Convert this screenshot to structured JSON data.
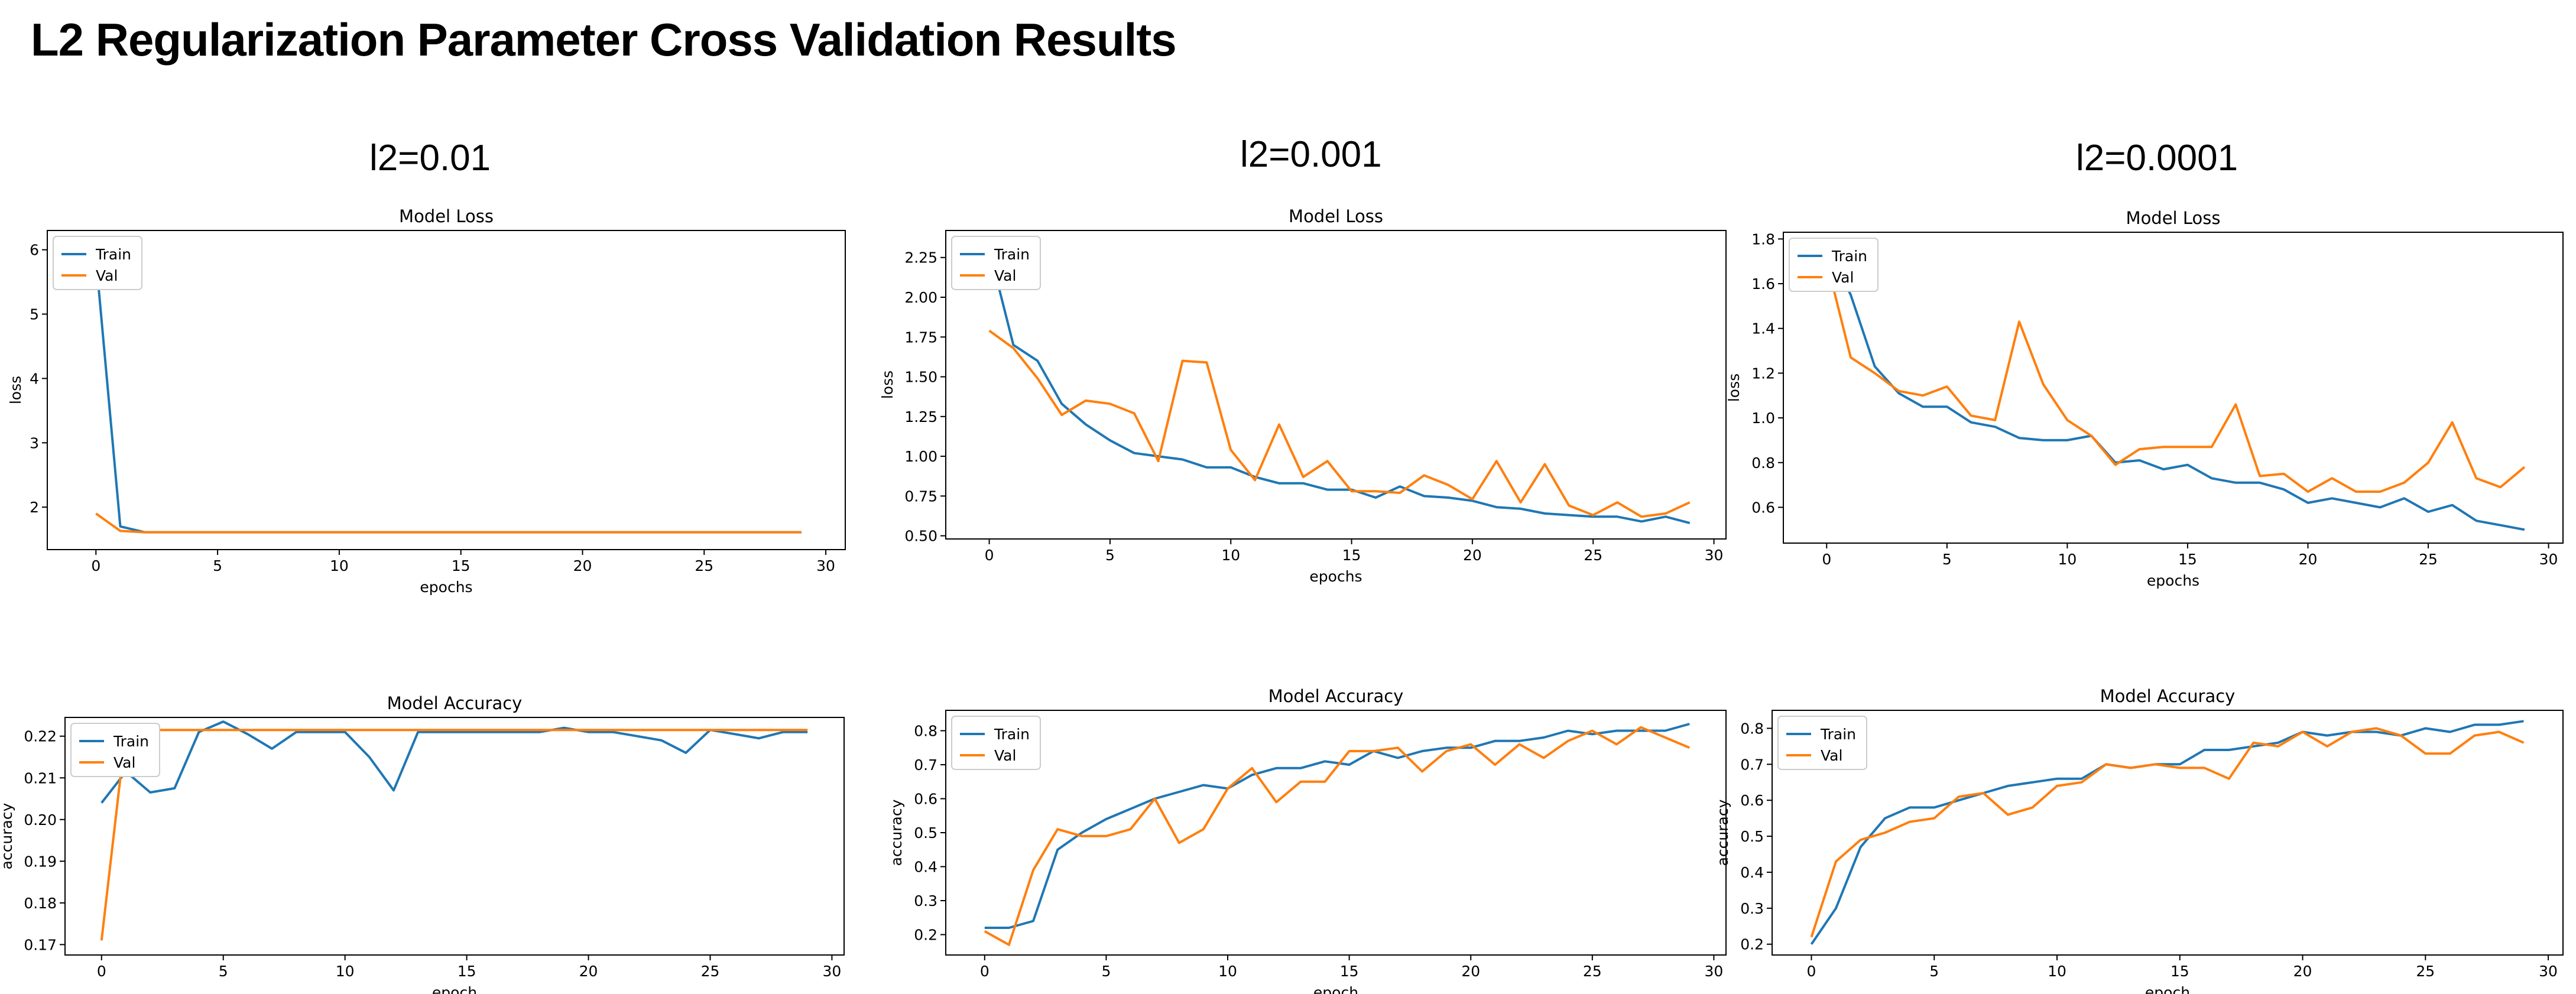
{
  "page": {
    "title": "L2 Regularization Parameter Cross Validation Results",
    "columns": [
      "l2=0.01",
      "l2=0.001",
      "l2=0.0001"
    ]
  },
  "colors": {
    "train": "#1f77b4",
    "val": "#ff7f0e",
    "axis": "#000000",
    "legend_border": "#cccccc"
  },
  "chart_data": [
    {
      "id": "loss-l2-0.01",
      "type": "line",
      "title": "Model Loss",
      "xlabel": "epochs",
      "ylabel": "loss",
      "xlim": [
        -2,
        30.8
      ],
      "ylim": [
        1.34,
        6.3
      ],
      "xticks": [
        0,
        5,
        10,
        15,
        20,
        25,
        30
      ],
      "yticks": [
        2,
        3,
        4,
        5,
        6
      ],
      "yticklabels": [
        "2",
        "3",
        "4",
        "5",
        "6"
      ],
      "legend": "upper left",
      "grid": false,
      "x": [
        0,
        1,
        2,
        3,
        4,
        5,
        6,
        7,
        8,
        9,
        10,
        11,
        12,
        13,
        14,
        15,
        16,
        17,
        18,
        19,
        20,
        21,
        22,
        23,
        24,
        25,
        26,
        27,
        28,
        29
      ],
      "series": [
        {
          "name": "Train",
          "values": [
            5.87,
            1.7,
            1.61,
            1.61,
            1.61,
            1.61,
            1.61,
            1.61,
            1.61,
            1.61,
            1.61,
            1.61,
            1.61,
            1.61,
            1.61,
            1.61,
            1.61,
            1.61,
            1.61,
            1.61,
            1.61,
            1.61,
            1.61,
            1.61,
            1.61,
            1.61,
            1.61,
            1.61,
            1.61,
            1.61
          ]
        },
        {
          "name": "Val",
          "values": [
            1.9,
            1.63,
            1.61,
            1.61,
            1.61,
            1.61,
            1.61,
            1.61,
            1.61,
            1.61,
            1.61,
            1.61,
            1.61,
            1.61,
            1.61,
            1.61,
            1.61,
            1.61,
            1.61,
            1.61,
            1.61,
            1.61,
            1.61,
            1.61,
            1.61,
            1.61,
            1.61,
            1.61,
            1.61,
            1.61
          ]
        }
      ]
    },
    {
      "id": "loss-l2-0.001",
      "type": "line",
      "title": "Model Loss",
      "xlabel": "epochs",
      "ylabel": "loss",
      "xlim": [
        -1.8,
        30.5
      ],
      "ylim": [
        0.48,
        2.42
      ],
      "xticks": [
        0,
        5,
        10,
        15,
        20,
        25,
        30
      ],
      "yticks": [
        0.5,
        0.75,
        1.0,
        1.25,
        1.5,
        1.75,
        2.0,
        2.25
      ],
      "yticklabels": [
        "0.50",
        "0.75",
        "1.00",
        "1.25",
        "1.50",
        "1.75",
        "2.00",
        "2.25"
      ],
      "legend": "upper left",
      "grid": false,
      "x": [
        0,
        1,
        2,
        3,
        4,
        5,
        6,
        7,
        8,
        9,
        10,
        11,
        12,
        13,
        14,
        15,
        16,
        17,
        18,
        19,
        20,
        21,
        22,
        23,
        24,
        25,
        26,
        27,
        28,
        29
      ],
      "series": [
        {
          "name": "Train",
          "values": [
            2.3,
            1.7,
            1.6,
            1.33,
            1.2,
            1.1,
            1.02,
            1.0,
            0.98,
            0.93,
            0.93,
            0.87,
            0.83,
            0.83,
            0.79,
            0.79,
            0.74,
            0.81,
            0.75,
            0.74,
            0.72,
            0.68,
            0.67,
            0.64,
            0.63,
            0.62,
            0.62,
            0.59,
            0.62,
            0.58
          ]
        },
        {
          "name": "Val",
          "values": [
            1.79,
            1.68,
            1.49,
            1.26,
            1.35,
            1.33,
            1.27,
            0.97,
            1.6,
            1.59,
            1.04,
            0.85,
            1.2,
            0.87,
            0.97,
            0.78,
            0.78,
            0.77,
            0.88,
            0.82,
            0.73,
            0.97,
            0.71,
            0.95,
            0.69,
            0.63,
            0.71,
            0.62,
            0.64,
            0.71
          ]
        }
      ]
    },
    {
      "id": "loss-l2-0.0001",
      "type": "line",
      "title": "Model Loss",
      "xlabel": "epochs",
      "ylabel": "loss",
      "xlim": [
        -1.8,
        30.6
      ],
      "ylim": [
        0.44,
        1.83
      ],
      "xticks": [
        0,
        5,
        10,
        15,
        20,
        25,
        30
      ],
      "yticks": [
        0.6,
        0.8,
        1.0,
        1.2,
        1.4,
        1.6,
        1.8
      ],
      "yticklabels": [
        "0.6",
        "0.8",
        "1.0",
        "1.2",
        "1.4",
        "1.6",
        "1.8"
      ],
      "legend": "upper left",
      "grid": false,
      "x": [
        0,
        1,
        2,
        3,
        4,
        5,
        6,
        7,
        8,
        9,
        10,
        11,
        12,
        13,
        14,
        15,
        16,
        17,
        18,
        19,
        20,
        21,
        22,
        23,
        24,
        25,
        26,
        27,
        28,
        29
      ],
      "series": [
        {
          "name": "Train",
          "values": [
            1.77,
            1.55,
            1.23,
            1.11,
            1.05,
            1.05,
            0.98,
            0.96,
            0.91,
            0.9,
            0.9,
            0.92,
            0.8,
            0.81,
            0.77,
            0.79,
            0.73,
            0.71,
            0.71,
            0.68,
            0.62,
            0.64,
            0.62,
            0.6,
            0.64,
            0.58,
            0.61,
            0.54,
            0.52,
            0.5
          ]
        },
        {
          "name": "Val",
          "values": [
            1.7,
            1.27,
            1.2,
            1.12,
            1.1,
            1.14,
            1.01,
            0.99,
            1.43,
            1.15,
            0.99,
            0.92,
            0.79,
            0.86,
            0.87,
            0.87,
            0.87,
            1.06,
            0.74,
            0.75,
            0.67,
            0.73,
            0.67,
            0.67,
            0.71,
            0.8,
            0.98,
            0.73,
            0.69,
            0.78
          ]
        }
      ]
    },
    {
      "id": "acc-l2-0.01",
      "type": "line",
      "title": "Model Accuracy",
      "xlabel": "epoch",
      "ylabel": "accuracy",
      "xlim": [
        -1.5,
        30.5
      ],
      "ylim": [
        0.1675,
        0.2245
      ],
      "xticks": [
        0,
        5,
        10,
        15,
        20,
        25,
        30
      ],
      "yticks": [
        0.17,
        0.18,
        0.19,
        0.2,
        0.21,
        0.22
      ],
      "yticklabels": [
        "0.17",
        "0.18",
        "0.19",
        "0.20",
        "0.21",
        "0.22"
      ],
      "legend": "upper left",
      "grid": false,
      "x": [
        0,
        1,
        2,
        3,
        4,
        5,
        6,
        7,
        8,
        9,
        10,
        11,
        12,
        13,
        14,
        15,
        16,
        17,
        18,
        19,
        20,
        21,
        22,
        23,
        24,
        25,
        26,
        27,
        28,
        29
      ],
      "series": [
        {
          "name": "Train",
          "values": [
            0.204,
            0.2115,
            0.2065,
            0.2075,
            0.221,
            0.2235,
            0.2205,
            0.217,
            0.221,
            0.221,
            0.221,
            0.215,
            0.207,
            0.221,
            0.221,
            0.221,
            0.221,
            0.221,
            0.221,
            0.222,
            0.221,
            0.221,
            0.22,
            0.219,
            0.216,
            0.2215,
            0.2205,
            0.2195,
            0.221,
            0.221
          ]
        },
        {
          "name": "Val",
          "values": [
            0.171,
            0.2215,
            0.2215,
            0.2215,
            0.2215,
            0.2215,
            0.2215,
            0.2215,
            0.2215,
            0.2215,
            0.2215,
            0.2215,
            0.2215,
            0.2215,
            0.2215,
            0.2215,
            0.2215,
            0.2215,
            0.2215,
            0.2215,
            0.2215,
            0.2215,
            0.2215,
            0.2215,
            0.2215,
            0.2215,
            0.2215,
            0.2215,
            0.2215,
            0.2215
          ]
        }
      ]
    },
    {
      "id": "acc-l2-0.001",
      "type": "line",
      "title": "Model Accuracy",
      "xlabel": "epoch",
      "ylabel": "accuracy",
      "xlim": [
        -1.6,
        30.5
      ],
      "ylim": [
        0.14,
        0.86
      ],
      "xticks": [
        0,
        5,
        10,
        15,
        20,
        25,
        30
      ],
      "yticks": [
        0.2,
        0.3,
        0.4,
        0.5,
        0.6,
        0.7,
        0.8
      ],
      "yticklabels": [
        "0.2",
        "0.3",
        "0.4",
        "0.5",
        "0.6",
        "0.7",
        "0.8"
      ],
      "legend": "upper left",
      "grid": false,
      "x": [
        0,
        1,
        2,
        3,
        4,
        5,
        6,
        7,
        8,
        9,
        10,
        11,
        12,
        13,
        14,
        15,
        16,
        17,
        18,
        19,
        20,
        21,
        22,
        23,
        24,
        25,
        26,
        27,
        28,
        29
      ],
      "series": [
        {
          "name": "Train",
          "values": [
            0.22,
            0.22,
            0.24,
            0.45,
            0.5,
            0.54,
            0.57,
            0.6,
            0.62,
            0.64,
            0.63,
            0.67,
            0.69,
            0.69,
            0.71,
            0.7,
            0.74,
            0.72,
            0.74,
            0.75,
            0.75,
            0.77,
            0.77,
            0.78,
            0.8,
            0.79,
            0.8,
            0.8,
            0.8,
            0.82
          ]
        },
        {
          "name": "Val",
          "values": [
            0.21,
            0.17,
            0.39,
            0.51,
            0.49,
            0.49,
            0.51,
            0.6,
            0.47,
            0.51,
            0.63,
            0.69,
            0.59,
            0.65,
            0.65,
            0.74,
            0.74,
            0.75,
            0.68,
            0.74,
            0.76,
            0.7,
            0.76,
            0.72,
            0.77,
            0.8,
            0.76,
            0.81,
            0.78,
            0.75
          ]
        }
      ]
    },
    {
      "id": "acc-l2-0.0001",
      "type": "line",
      "title": "Model Accuracy",
      "xlabel": "epoch",
      "ylabel": "accuracy",
      "xlim": [
        -1.6,
        30.6
      ],
      "ylim": [
        0.17,
        0.85
      ],
      "xticks": [
        0,
        5,
        10,
        15,
        20,
        25,
        30
      ],
      "yticks": [
        0.2,
        0.3,
        0.4,
        0.5,
        0.6,
        0.7,
        0.8
      ],
      "yticklabels": [
        "0.2",
        "0.3",
        "0.4",
        "0.5",
        "0.6",
        "0.7",
        "0.8"
      ],
      "legend": "upper left",
      "grid": false,
      "x": [
        0,
        1,
        2,
        3,
        4,
        5,
        6,
        7,
        8,
        9,
        10,
        11,
        12,
        13,
        14,
        15,
        16,
        17,
        18,
        19,
        20,
        21,
        22,
        23,
        24,
        25,
        26,
        27,
        28,
        29
      ],
      "series": [
        {
          "name": "Train",
          "values": [
            0.2,
            0.3,
            0.47,
            0.55,
            0.58,
            0.58,
            0.6,
            0.62,
            0.64,
            0.65,
            0.66,
            0.66,
            0.7,
            0.69,
            0.7,
            0.7,
            0.74,
            0.74,
            0.75,
            0.76,
            0.79,
            0.78,
            0.79,
            0.79,
            0.78,
            0.8,
            0.79,
            0.81,
            0.81,
            0.82
          ]
        },
        {
          "name": "Val",
          "values": [
            0.22,
            0.43,
            0.49,
            0.51,
            0.54,
            0.55,
            0.61,
            0.62,
            0.56,
            0.58,
            0.64,
            0.65,
            0.7,
            0.69,
            0.7,
            0.69,
            0.69,
            0.66,
            0.76,
            0.75,
            0.79,
            0.75,
            0.79,
            0.8,
            0.78,
            0.73,
            0.73,
            0.78,
            0.79,
            0.76
          ]
        }
      ]
    }
  ]
}
